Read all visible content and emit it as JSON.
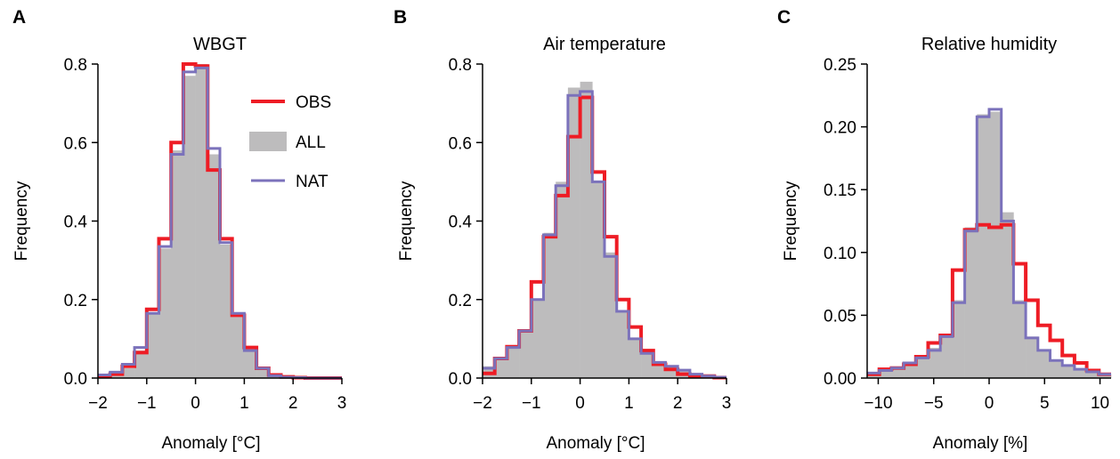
{
  "legend": {
    "obs": {
      "label": "OBS",
      "color": "#ee1c25"
    },
    "all": {
      "label": "ALL",
      "color": "#bdbcbd"
    },
    "nat": {
      "label": "NAT",
      "color": "#7b72bb"
    }
  },
  "chart_data": [
    {
      "letter": "A",
      "type": "bar",
      "title": "WBGT",
      "xlabel": "Anomaly [°C]",
      "ylabel": "Frequency",
      "xlim": [
        -2.0,
        3.0
      ],
      "ylim": [
        0.0,
        0.8
      ],
      "xticks": [
        -2,
        -1,
        0,
        1,
        2,
        3
      ],
      "xtick_labels": [
        "−2",
        "−1",
        "0",
        "1",
        "2",
        "3"
      ],
      "yticks": [
        0.0,
        0.2,
        0.4,
        0.6,
        0.8
      ],
      "ytick_labels": [
        "0.0",
        "0.2",
        "0.4",
        "0.6",
        "0.8"
      ],
      "legend_position": "top-right",
      "bin_edges": [
        -2.0,
        -1.75,
        -1.5,
        -1.25,
        -1.0,
        -0.75,
        -0.5,
        -0.25,
        0.0,
        0.25,
        0.5,
        0.75,
        1.0,
        1.25,
        1.5,
        1.75,
        2.0,
        2.25,
        2.5,
        2.75,
        3.0
      ],
      "series": [
        {
          "key": "all",
          "name": "ALL",
          "values": [
            0.005,
            0.01,
            0.025,
            0.07,
            0.165,
            0.33,
            0.58,
            0.77,
            0.8,
            0.57,
            0.34,
            0.16,
            0.075,
            0.025,
            0.008,
            0.003,
            0.001,
            0.0,
            0.0,
            0.0
          ]
        },
        {
          "key": "nat",
          "name": "NAT",
          "values": [
            0.008,
            0.015,
            0.035,
            0.078,
            0.165,
            0.335,
            0.57,
            0.78,
            0.79,
            0.585,
            0.345,
            0.165,
            0.07,
            0.025,
            0.006,
            0.002,
            0.001,
            0.0,
            0.0,
            0.0
          ]
        },
        {
          "key": "obs",
          "name": "OBS",
          "values": [
            0.005,
            0.01,
            0.03,
            0.065,
            0.175,
            0.355,
            0.6,
            0.8,
            0.795,
            0.53,
            0.355,
            0.16,
            0.078,
            0.025,
            0.008,
            0.003,
            0.001,
            0.0,
            0.0,
            0.0
          ]
        }
      ]
    },
    {
      "letter": "B",
      "type": "bar",
      "title": "Air temperature",
      "xlabel": "Anomaly [°C]",
      "ylabel": "Frequency",
      "xlim": [
        -2.0,
        3.0
      ],
      "ylim": [
        0.0,
        0.8
      ],
      "xticks": [
        -2,
        -1,
        0,
        1,
        2,
        3
      ],
      "xtick_labels": [
        "−2",
        "−1",
        "0",
        "1",
        "2",
        "3"
      ],
      "yticks": [
        0.0,
        0.2,
        0.4,
        0.6,
        0.8
      ],
      "ytick_labels": [
        "0.0",
        "0.2",
        "0.4",
        "0.6",
        "0.8"
      ],
      "bin_edges": [
        -2.0,
        -1.75,
        -1.5,
        -1.25,
        -1.0,
        -0.75,
        -0.5,
        -0.25,
        0.0,
        0.25,
        0.5,
        0.75,
        1.0,
        1.25,
        1.5,
        1.75,
        2.0,
        2.25,
        2.5,
        2.75,
        3.0
      ],
      "series": [
        {
          "key": "all",
          "name": "ALL",
          "values": [
            0.03,
            0.05,
            0.08,
            0.12,
            0.2,
            0.37,
            0.5,
            0.74,
            0.755,
            0.5,
            0.32,
            0.17,
            0.1,
            0.065,
            0.04,
            0.03,
            0.02,
            0.01,
            0.005,
            0.002
          ]
        },
        {
          "key": "nat",
          "name": "NAT",
          "values": [
            0.025,
            0.05,
            0.078,
            0.12,
            0.2,
            0.365,
            0.49,
            0.72,
            0.73,
            0.5,
            0.31,
            0.17,
            0.1,
            0.063,
            0.04,
            0.03,
            0.02,
            0.01,
            0.005,
            0.002
          ]
        },
        {
          "key": "obs",
          "name": "OBS",
          "values": [
            0.012,
            0.05,
            0.08,
            0.12,
            0.245,
            0.36,
            0.465,
            0.615,
            0.715,
            0.525,
            0.36,
            0.2,
            0.13,
            0.07,
            0.035,
            0.022,
            0.01,
            0.005,
            0.005,
            0.001
          ]
        }
      ]
    },
    {
      "letter": "C",
      "type": "bar",
      "title": "Relative humidity",
      "xlabel": "Anomaly [%]",
      "ylabel": "Frequency",
      "xlim": [
        -11.0,
        11.0
      ],
      "ylim": [
        0.0,
        0.25
      ],
      "xticks": [
        -10,
        -5,
        0,
        5,
        10
      ],
      "xtick_labels": [
        "−10",
        "−5",
        "0",
        "5",
        "10"
      ],
      "yticks": [
        0.0,
        0.05,
        0.1,
        0.15,
        0.2,
        0.25
      ],
      "ytick_labels": [
        "0.00",
        "0.05",
        "0.10",
        "0.15",
        "0.20",
        "0.25"
      ],
      "bin_edges": [
        -11.0,
        -9.9,
        -8.8,
        -7.7,
        -6.6,
        -5.5,
        -4.4,
        -3.3,
        -2.2,
        -1.1,
        0.0,
        1.1,
        2.2,
        3.3,
        4.4,
        5.5,
        6.6,
        7.7,
        8.8,
        9.9,
        11.0
      ],
      "series": [
        {
          "key": "all",
          "name": "ALL",
          "values": [
            0.004,
            0.006,
            0.008,
            0.012,
            0.016,
            0.024,
            0.035,
            0.062,
            0.12,
            0.21,
            0.212,
            0.132,
            0.062,
            0.033,
            0.022,
            0.014,
            0.01,
            0.007,
            0.005,
            0.003
          ]
        },
        {
          "key": "nat",
          "name": "NAT",
          "values": [
            0.004,
            0.006,
            0.008,
            0.012,
            0.016,
            0.022,
            0.033,
            0.06,
            0.117,
            0.208,
            0.214,
            0.125,
            0.06,
            0.032,
            0.022,
            0.014,
            0.01,
            0.007,
            0.005,
            0.003
          ]
        },
        {
          "key": "obs",
          "name": "OBS",
          "values": [
            0.003,
            0.007,
            0.008,
            0.011,
            0.017,
            0.028,
            0.034,
            0.086,
            0.118,
            0.122,
            0.12,
            0.122,
            0.091,
            0.062,
            0.042,
            0.03,
            0.018,
            0.012,
            0.006,
            0.003
          ]
        }
      ]
    }
  ]
}
